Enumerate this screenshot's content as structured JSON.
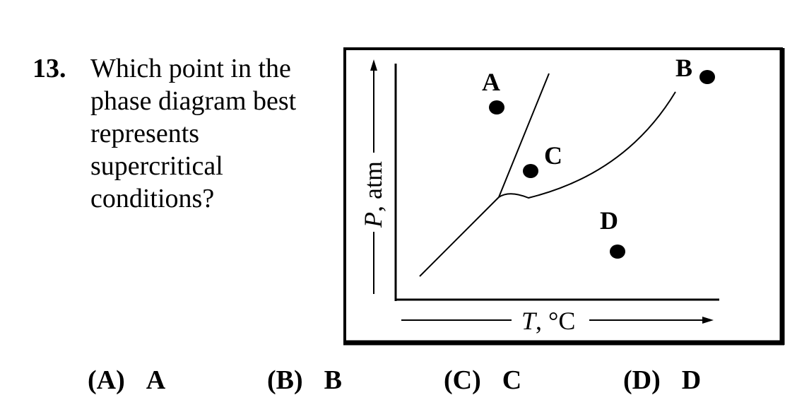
{
  "question": {
    "number": "13.",
    "lines": [
      "Which point in the",
      "phase diagram best",
      "represents",
      "supercritical",
      "conditions?"
    ]
  },
  "diagram": {
    "y_axis_label_italic": "P",
    "y_axis_label_rest": ", atm",
    "x_axis_label_italic": "T",
    "x_axis_label_rest": ", °C",
    "points": {
      "A": "A",
      "B": "B",
      "C": "C",
      "D": "D"
    }
  },
  "choices": [
    {
      "letter": "(A)",
      "value": "A"
    },
    {
      "letter": "(B)",
      "value": "B"
    },
    {
      "letter": "(C)",
      "value": "C"
    },
    {
      "letter": "(D)",
      "value": "D"
    }
  ]
}
